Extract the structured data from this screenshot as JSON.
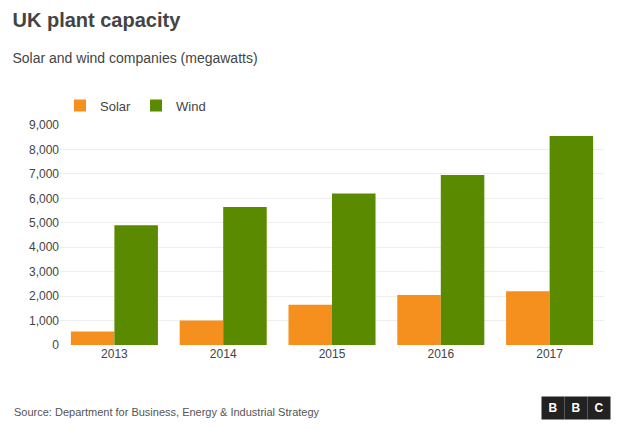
{
  "chart_data": {
    "type": "bar",
    "title": "UK plant capacity",
    "subtitle": "Solar and wind companies (megawatts)",
    "categories": [
      "2013",
      "2014",
      "2015",
      "2016",
      "2017"
    ],
    "series": [
      {
        "name": "Solar",
        "color": "#f5901e",
        "values": [
          550,
          1000,
          1650,
          2050,
          2200
        ]
      },
      {
        "name": "Wind",
        "color": "#5a8a00",
        "values": [
          4900,
          5650,
          6200,
          6950,
          8550
        ]
      }
    ],
    "ylim": [
      0,
      9000
    ],
    "yticks": [
      0,
      {
        "value": 1000,
        "label": "1,000"
      },
      {
        "value": 2000,
        "label": "2,000"
      },
      {
        "value": 3000,
        "label": "3,000"
      },
      {
        "value": 4000,
        "label": "4,000"
      },
      {
        "value": 5000,
        "label": "5,000"
      },
      {
        "value": 6000,
        "label": "6,000"
      },
      {
        "value": 7000,
        "label": "7,000"
      },
      {
        "value": 8000,
        "label": "8,000"
      },
      {
        "value": 9000,
        "label": "9,000"
      }
    ],
    "grid": true,
    "legend": "upper left",
    "annotations": [
      "Source: Department for Business, Energy & Industrial Strategy",
      "B",
      "B",
      "C"
    ]
  }
}
